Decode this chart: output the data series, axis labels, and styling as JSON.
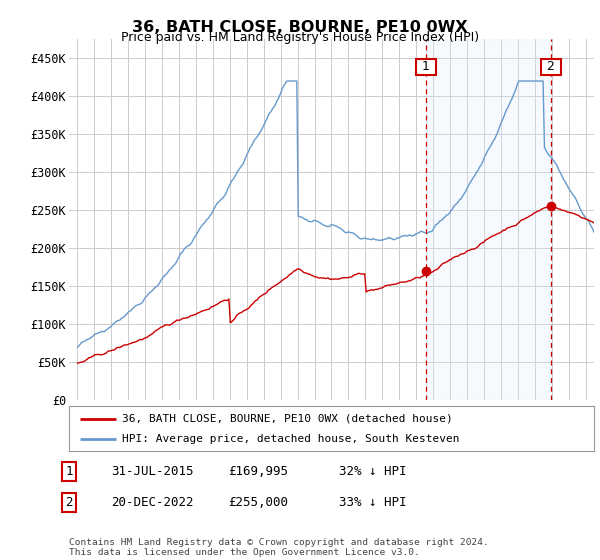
{
  "title": "36, BATH CLOSE, BOURNE, PE10 0WX",
  "subtitle": "Price paid vs. HM Land Registry's House Price Index (HPI)",
  "yticks": [
    0,
    50000,
    100000,
    150000,
    200000,
    250000,
    300000,
    350000,
    400000,
    450000
  ],
  "ytick_labels": [
    "£0",
    "£50K",
    "£100K",
    "£150K",
    "£200K",
    "£250K",
    "£300K",
    "£350K",
    "£400K",
    "£450K"
  ],
  "xlim_start": 1994.5,
  "xlim_end": 2025.5,
  "ylim": [
    0,
    475000
  ],
  "marker1_x": 2015.58,
  "marker1_y": 169995,
  "marker2_x": 2022.97,
  "marker2_y": 255000,
  "vline1_x": 2015.58,
  "vline2_x": 2022.97,
  "legend_label_red": "36, BATH CLOSE, BOURNE, PE10 0WX (detached house)",
  "legend_label_blue": "HPI: Average price, detached house, South Kesteven",
  "footnote": "Contains HM Land Registry data © Crown copyright and database right 2024.\nThis data is licensed under the Open Government Licence v3.0.",
  "red_color": "#cc0000",
  "blue_color": "#6699cc",
  "blue_fill": "#ddeeff",
  "vline_color": "#cc0000",
  "background_color": "#ffffff",
  "grid_color": "#cccccc",
  "table_row1": [
    "1",
    "31-JUL-2015",
    "£169,995",
    "32% ↓ HPI"
  ],
  "table_row2": [
    "2",
    "20-DEC-2022",
    "£255,000",
    "33% ↓ HPI"
  ]
}
